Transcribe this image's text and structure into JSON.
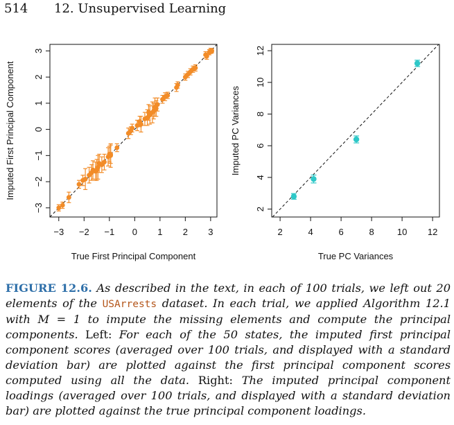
{
  "header": {
    "page_number": "514",
    "chapter_title": "12. Unsupervised Learning"
  },
  "chart_data": [
    {
      "type": "scatter",
      "xlabel": "True First Principal Component",
      "ylabel": "Imputed First Principal Component",
      "xlim": [
        -3.35,
        3.25
      ],
      "ylim": [
        -3.35,
        3.25
      ],
      "xticks": [
        "−3",
        "−2",
        "−1",
        "0",
        "1",
        "2",
        "3"
      ],
      "yticks": [
        "−3",
        "−2",
        "−1",
        "0",
        "1",
        "2",
        "3"
      ],
      "colors": {
        "points": "#f28c28",
        "reference": "#111111"
      },
      "reference_line": "y = x (dashed)",
      "points": [
        {
          "x": -3.0,
          "y": -3.0,
          "sd": 0.12
        },
        {
          "x": -2.85,
          "y": -2.9,
          "sd": 0.12
        },
        {
          "x": -2.6,
          "y": -2.6,
          "sd": 0.2
        },
        {
          "x": -2.2,
          "y": -2.1,
          "sd": 0.15
        },
        {
          "x": -2.05,
          "y": -1.95,
          "sd": 0.2
        },
        {
          "x": -1.95,
          "y": -1.9,
          "sd": 0.4
        },
        {
          "x": -1.8,
          "y": -1.75,
          "sd": 0.3
        },
        {
          "x": -1.7,
          "y": -1.65,
          "sd": 0.3
        },
        {
          "x": -1.65,
          "y": -1.55,
          "sd": 0.35
        },
        {
          "x": -1.55,
          "y": -1.6,
          "sd": 0.35
        },
        {
          "x": -1.5,
          "y": -1.55,
          "sd": 0.4
        },
        {
          "x": -1.45,
          "y": -1.45,
          "sd": 0.45
        },
        {
          "x": -1.4,
          "y": -1.3,
          "sd": 0.35
        },
        {
          "x": -1.3,
          "y": -1.35,
          "sd": 0.3
        },
        {
          "x": -1.2,
          "y": -1.25,
          "sd": 0.3
        },
        {
          "x": -1.05,
          "y": -1.05,
          "sd": 0.35
        },
        {
          "x": -1.0,
          "y": -0.95,
          "sd": 0.3
        },
        {
          "x": -0.95,
          "y": -1.0,
          "sd": 0.45
        },
        {
          "x": -0.95,
          "y": -0.95,
          "sd": 0.35
        },
        {
          "x": -0.7,
          "y": -0.7,
          "sd": 0.15
        },
        {
          "x": -0.25,
          "y": -0.15,
          "sd": 0.2
        },
        {
          "x": -0.15,
          "y": -0.05,
          "sd": 0.15
        },
        {
          "x": -0.1,
          "y": 0.05,
          "sd": 0.15
        },
        {
          "x": 0.1,
          "y": 0.15,
          "sd": 0.2
        },
        {
          "x": 0.2,
          "y": 0.3,
          "sd": 0.2
        },
        {
          "x": 0.25,
          "y": 0.2,
          "sd": 0.3
        },
        {
          "x": 0.4,
          "y": 0.4,
          "sd": 0.25
        },
        {
          "x": 0.5,
          "y": 0.45,
          "sd": 0.3
        },
        {
          "x": 0.55,
          "y": 0.65,
          "sd": 0.3
        },
        {
          "x": 0.6,
          "y": 0.55,
          "sd": 0.35
        },
        {
          "x": 0.7,
          "y": 0.65,
          "sd": 0.4
        },
        {
          "x": 0.75,
          "y": 0.7,
          "sd": 0.3
        },
        {
          "x": 0.8,
          "y": 0.85,
          "sd": 0.35
        },
        {
          "x": 0.85,
          "y": 0.8,
          "sd": 0.3
        },
        {
          "x": 0.9,
          "y": 0.95,
          "sd": 0.25
        },
        {
          "x": 1.1,
          "y": 1.15,
          "sd": 0.15
        },
        {
          "x": 1.2,
          "y": 1.25,
          "sd": 0.15
        },
        {
          "x": 1.3,
          "y": 1.3,
          "sd": 0.12
        },
        {
          "x": 1.65,
          "y": 1.6,
          "sd": 0.15
        },
        {
          "x": 1.7,
          "y": 1.7,
          "sd": 0.12
        },
        {
          "x": 2.0,
          "y": 2.0,
          "sd": 0.12
        },
        {
          "x": 2.1,
          "y": 2.1,
          "sd": 0.12
        },
        {
          "x": 2.2,
          "y": 2.2,
          "sd": 0.12
        },
        {
          "x": 2.3,
          "y": 2.3,
          "sd": 0.12
        },
        {
          "x": 2.4,
          "y": 2.35,
          "sd": 0.12
        },
        {
          "x": 2.8,
          "y": 2.85,
          "sd": 0.12
        },
        {
          "x": 2.85,
          "y": 2.8,
          "sd": 0.12
        },
        {
          "x": 2.95,
          "y": 2.95,
          "sd": 0.1
        },
        {
          "x": 3.0,
          "y": 3.0,
          "sd": 0.1
        },
        {
          "x": 3.05,
          "y": 3.0,
          "sd": 0.08
        }
      ]
    },
    {
      "type": "scatter",
      "xlabel": "True PC Variances",
      "ylabel": "Imputed PC Variances",
      "xlim": [
        1.45,
        12.45
      ],
      "ylim": [
        1.5,
        12.4
      ],
      "xticks": [
        "2",
        "4",
        "6",
        "8",
        "10",
        "12"
      ],
      "yticks": [
        "2",
        "4",
        "6",
        "8",
        "10",
        "12"
      ],
      "colors": {
        "points": "#2ec8c8",
        "reference": "#111111"
      },
      "reference_line": "y = x (dashed)",
      "points": [
        {
          "x": 2.9,
          "y": 2.8,
          "sd": 0.18
        },
        {
          "x": 4.2,
          "y": 3.9,
          "sd": 0.25
        },
        {
          "x": 7.0,
          "y": 6.4,
          "sd": 0.22
        },
        {
          "x": 11.0,
          "y": 11.2,
          "sd": 0.2
        }
      ]
    }
  ],
  "caption": {
    "label": "FIGURE 12.6.",
    "part1": "As described in the text, in each of 100 trials, we left out 20 elements of the",
    "dataset": "USArrests",
    "part2": "dataset. In each trial, we applied Algorithm 12.1 with",
    "math": "M = 1",
    "part3": "to impute the missing elements and compute the principal components.",
    "left_label": "Left:",
    "part4": "For each of the 50 states, the imputed first principal component scores (averaged over 100 trials, and displayed with a standard deviation bar) are plotted against the first principal component scores computed using all the data.",
    "right_label": "Right:",
    "part5": "The imputed principal component loadings (averaged over 100 trials, and displayed with a standard deviation bar) are plotted against the true principal component loadings."
  }
}
